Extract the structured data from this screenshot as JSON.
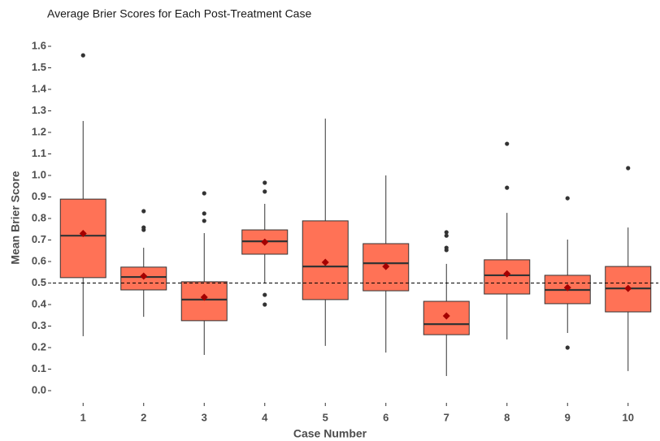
{
  "chart_data": {
    "type": "box",
    "title": "Average Brier Scores for Each Post-Treatment Case",
    "x_label": "Case Number",
    "y_label": "Mean Brier Score",
    "categories": [
      "1",
      "2",
      "3",
      "4",
      "5",
      "6",
      "7",
      "8",
      "9",
      "10"
    ],
    "boxes": [
      {
        "low": 0.253,
        "q1": 0.525,
        "median": 0.72,
        "q3": 0.89,
        "high": 1.253,
        "mean": 0.73,
        "outliers": [
          1.558
        ]
      },
      {
        "low": 0.343,
        "q1": 0.468,
        "median": 0.528,
        "q3": 0.574,
        "high": 0.664,
        "mean": 0.532,
        "outliers": [
          0.834,
          0.758,
          0.747
        ]
      },
      {
        "low": 0.166,
        "q1": 0.325,
        "median": 0.423,
        "q3": 0.506,
        "high": 0.732,
        "mean": 0.434,
        "outliers": [
          0.917,
          0.823,
          0.789
        ]
      },
      {
        "low": 0.502,
        "q1": 0.634,
        "median": 0.694,
        "q3": 0.747,
        "high": 0.868,
        "mean": 0.69,
        "outliers": [
          0.966,
          0.925,
          0.445,
          0.4
        ]
      },
      {
        "low": 0.208,
        "q1": 0.423,
        "median": 0.577,
        "q3": 0.789,
        "high": 1.264,
        "mean": 0.596,
        "outliers": []
      },
      {
        "low": 0.177,
        "q1": 0.464,
        "median": 0.592,
        "q3": 0.683,
        "high": 1.0,
        "mean": 0.577,
        "outliers": []
      },
      {
        "low": 0.068,
        "q1": 0.26,
        "median": 0.309,
        "q3": 0.415,
        "high": 0.589,
        "mean": 0.347,
        "outliers": [
          0.736,
          0.72,
          0.664,
          0.653
        ]
      },
      {
        "low": 0.238,
        "q1": 0.449,
        "median": 0.536,
        "q3": 0.608,
        "high": 0.826,
        "mean": 0.543,
        "outliers": [
          1.147,
          0.943
        ]
      },
      {
        "low": 0.268,
        "q1": 0.404,
        "median": 0.468,
        "q3": 0.536,
        "high": 0.702,
        "mean": 0.479,
        "outliers": [
          0.894,
          0.2
        ]
      },
      {
        "low": 0.091,
        "q1": 0.366,
        "median": 0.475,
        "q3": 0.577,
        "high": 0.758,
        "mean": 0.475,
        "outliers": [
          1.034
        ]
      }
    ],
    "box_color": "#ff7256",
    "mean_color": "#a50000",
    "outlier_color": "#333333",
    "reference_line": 0.5,
    "ylim": [
      -0.05,
      1.65
    ],
    "yticks": [
      {
        "value": 0,
        "label": "0.0"
      },
      0.1,
      0.2,
      0.3,
      0.4,
      0.5,
      0.6,
      0.7,
      0.8,
      0.9,
      {
        "value": 1,
        "label": "1.0"
      },
      1.1,
      1.2,
      1.3,
      1.4,
      1.5,
      1.6
    ],
    "grid": false
  }
}
